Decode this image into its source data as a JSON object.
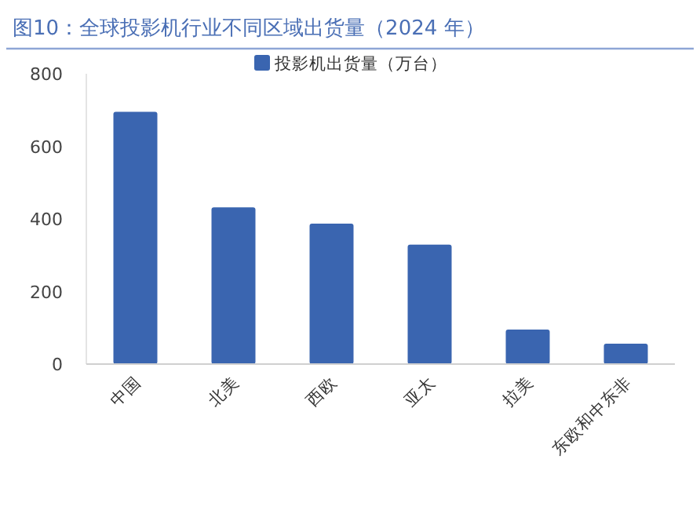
{
  "chart_data": {
    "type": "bar",
    "title": "图10：全球投影机行业不同区域出货量（2024 年）",
    "categories": [
      "中国",
      "北美",
      "西欧",
      "亚太",
      "拉美",
      "东欧和中东非"
    ],
    "series": [
      {
        "name": "投影机出货量（万台）",
        "color": "#3a65b0",
        "values": [
          695,
          432,
          387,
          329,
          95,
          56
        ]
      }
    ],
    "ylim": [
      0,
      800
    ],
    "yticks": [
      0,
      200,
      400,
      600,
      800
    ],
    "legend": "top",
    "grid": false
  }
}
